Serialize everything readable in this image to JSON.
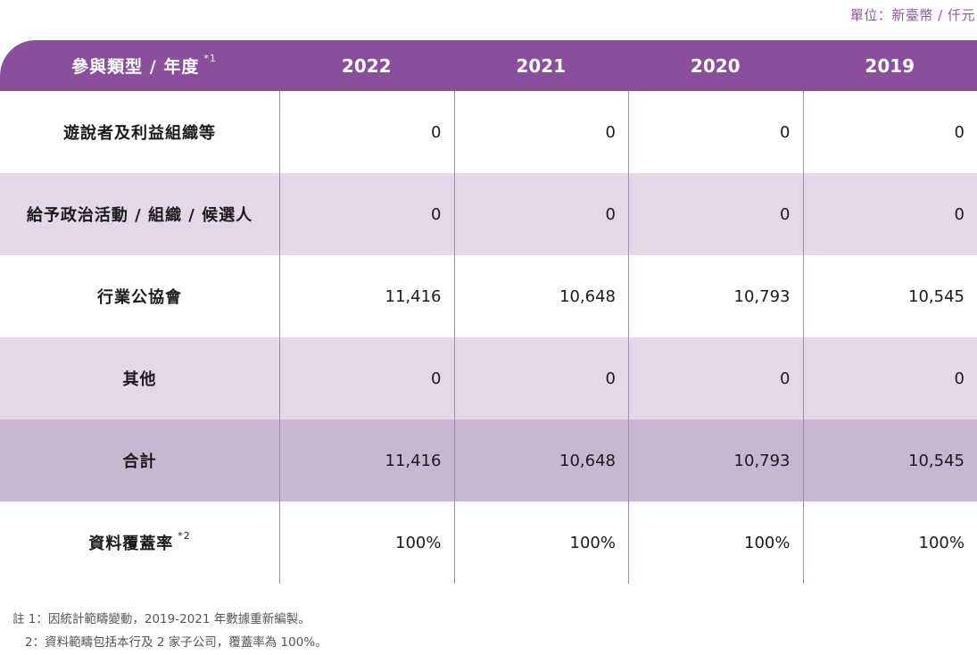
{
  "unit": "單位：新臺幣 / 仟元",
  "header": {
    "category_label": "參與類型 / 年度",
    "category_sup": "*1",
    "years": [
      "2022",
      "2021",
      "2020",
      "2019"
    ]
  },
  "rows": [
    {
      "label": "遊說者及利益組織等",
      "sup": "",
      "values": [
        "0",
        "0",
        "0",
        "0"
      ]
    },
    {
      "label": "給予政治活動 / 組織 / 候選人",
      "sup": "",
      "values": [
        "0",
        "0",
        "0",
        "0"
      ]
    },
    {
      "label": "行業公協會",
      "sup": "",
      "values": [
        "11,416",
        "10,648",
        "10,793",
        "10,545"
      ]
    },
    {
      "label": "其他",
      "sup": "",
      "values": [
        "0",
        "0",
        "0",
        "0"
      ]
    },
    {
      "label": "合計",
      "sup": "",
      "values": [
        "11,416",
        "10,648",
        "10,793",
        "10,545"
      ]
    },
    {
      "label": "資料覆蓋率",
      "sup": "*2",
      "values": [
        "100%",
        "100%",
        "100%",
        "100%"
      ]
    }
  ],
  "notes": [
    "註 1：因統計範疇變動，2019-2021 年數據重新編製。",
    "2：資料範疇包括本行及 2 家子公司，覆蓋率為 100%。"
  ]
}
